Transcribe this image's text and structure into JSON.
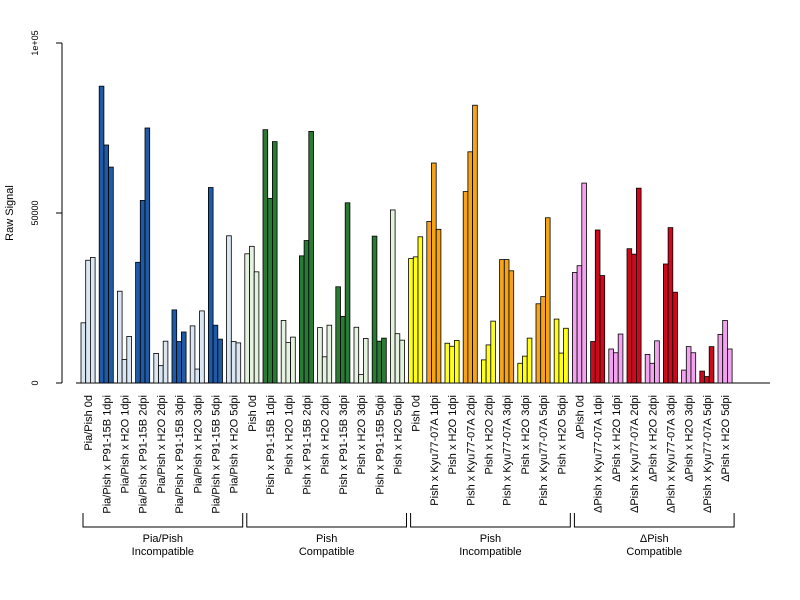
{
  "chart_data": {
    "type": "bar",
    "ylabel": "Raw Signal",
    "ylim": [
      0,
      100000
    ],
    "yticks": [
      {
        "value": 0,
        "label": "0"
      },
      {
        "value": 50000,
        "label": "50000"
      },
      {
        "value": 100000,
        "label": "1e+05"
      }
    ],
    "grid": false,
    "categories": [
      "Pia/Pish 0d",
      "Pia/Pish x P91-15B 1dpi",
      "Pia/Pish x H2O 1dpi",
      "Pia/Pish x P91-15B 2dpi",
      "Pia/Pish x H2O 2dpi",
      "Pia/Pish x P91-15B 3dpi",
      "Pia/Pish x H2O 3dpi",
      "Pia/Pish x P91-15B 5dpi",
      "Pia/Pish x H2O 5dpi",
      "Pish 0d",
      "Pish x P91-15B 1dpi",
      "Pish x H2O 1dpi",
      "Pish x P91-15B 2dpi",
      "Pish x H2O 2dpi",
      "Pish x P91-15B 3dpi",
      "Pish x H2O 3dpi",
      "Pish x P91-15B 5dpi",
      "Pish x H2O 5dpi",
      "Pish 0d",
      "Pish x Kyu77-07A 1dpi",
      "Pish x H2O 1dpi",
      "Pish x Kyu77-07A 2dpi",
      "Pish x H2O 2dpi",
      "Pish x Kyu77-07A 3dpi",
      "Pish x H2O 3dpi",
      "Pish x Kyu77-07A 5dpi",
      "Pish x H2O 5dpi",
      "ΔPish 0d",
      "ΔPish x Kyu77-07A 1dpi",
      "ΔPish x H2O 1dpi",
      "ΔPish x Kyu77-07A 2dpi",
      "ΔPish x H2O 2dpi",
      "ΔPish x Kyu77-07A 3dpi",
      "ΔPish x H2O 3dpi",
      "ΔPish x Kyu77-07A 5dpi",
      "ΔPish x H2O 5dpi"
    ],
    "values": [
      [
        17700,
        36100,
        36900
      ],
      [
        87300,
        70000,
        63500
      ],
      [
        27000,
        6900,
        13700
      ],
      [
        35500,
        53700,
        75000
      ],
      [
        8700,
        5100,
        12300
      ],
      [
        21500,
        12200,
        15000
      ],
      [
        16800,
        4100,
        21200
      ],
      [
        57500,
        17000,
        12900
      ],
      [
        43300,
        12200,
        11800
      ],
      [
        38000,
        40200,
        32700
      ],
      [
        74500,
        54300,
        71000
      ],
      [
        18400,
        11900,
        13500
      ],
      [
        37400,
        41900,
        74000
      ],
      [
        16300,
        7700,
        17000
      ],
      [
        28300,
        19600,
        53000
      ],
      [
        16400,
        2500,
        13100
      ],
      [
        43200,
        12300,
        13200
      ],
      [
        50900,
        14500,
        12600
      ],
      [
        36600,
        37100,
        43000
      ],
      [
        47500,
        64700,
        45200
      ],
      [
        11700,
        10800,
        12500
      ],
      [
        56300,
        68000,
        81700
      ],
      [
        6800,
        11200,
        18200
      ],
      [
        36300,
        36300,
        33000
      ],
      [
        5800,
        7900,
        13200
      ],
      [
        23300,
        25400,
        48600
      ],
      [
        18800,
        8800,
        16100
      ],
      [
        32500,
        34500,
        58800
      ],
      [
        12200,
        45000,
        31600
      ],
      [
        10000,
        8900,
        14400
      ],
      [
        39500,
        37900,
        57300
      ],
      [
        8400,
        5800,
        12400
      ],
      [
        35000,
        45700,
        26700
      ],
      [
        3800,
        10700,
        8900
      ],
      [
        3500,
        1900,
        10700
      ],
      [
        14300,
        18400,
        10000
      ]
    ],
    "colors": {
      "incompatible_mock": "#dbe6f3",
      "incompatible_pathogen": "#1f5aa6",
      "compatible_mock": "#e4f2df",
      "compatible_pathogen": "#2a7a36",
      "pish_mock": "#ffff1a",
      "pish_pathogen": "#f5a318",
      "dpish_mock": "#f2a3ee",
      "dpish_pathogen": "#cc0a1e"
    },
    "bar_color_keys": [
      "incompatible_mock",
      "incompatible_pathogen",
      "incompatible_mock",
      "incompatible_pathogen",
      "incompatible_mock",
      "incompatible_pathogen",
      "incompatible_mock",
      "incompatible_pathogen",
      "incompatible_mock",
      "compatible_mock",
      "compatible_pathogen",
      "compatible_mock",
      "compatible_pathogen",
      "compatible_mock",
      "compatible_pathogen",
      "compatible_mock",
      "compatible_pathogen",
      "compatible_mock",
      "pish_mock",
      "pish_pathogen",
      "pish_mock",
      "pish_pathogen",
      "pish_mock",
      "pish_pathogen",
      "pish_mock",
      "pish_pathogen",
      "pish_mock",
      "dpish_mock",
      "dpish_pathogen",
      "dpish_mock",
      "dpish_pathogen",
      "dpish_mock",
      "dpish_pathogen",
      "dpish_mock",
      "dpish_pathogen",
      "dpish_mock"
    ],
    "groups": [
      {
        "line1": "Pia/Pish",
        "line2": "Incompatible",
        "span": [
          0,
          8
        ]
      },
      {
        "line1": "Pish",
        "line2": "Compatible",
        "span": [
          9,
          17
        ]
      },
      {
        "line1": "Pish",
        "line2": "Incompatible",
        "span": [
          18,
          26
        ]
      },
      {
        "line1": "ΔPish",
        "line2": "Compatible",
        "span": [
          27,
          35
        ]
      }
    ]
  }
}
